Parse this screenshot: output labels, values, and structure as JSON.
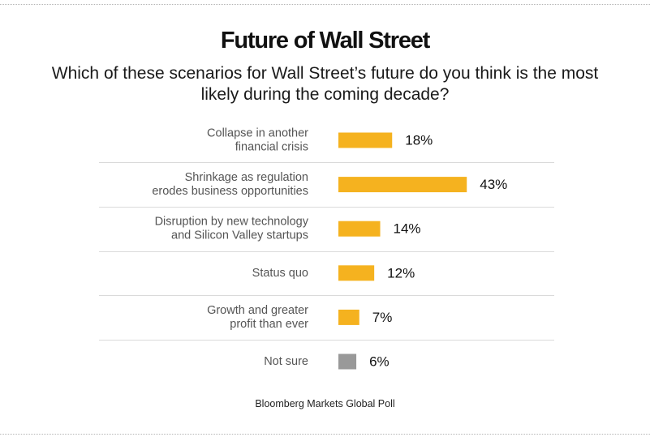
{
  "header": {
    "title": "Future of Wall Street",
    "subtitle": "Which of these scenarios for Wall Street’s future do you think is the most likely during the coming decade?"
  },
  "footer": {
    "source": "Bloomberg Markets Global Poll"
  },
  "colors": {
    "bar": "#f5b21f",
    "bar_muted": "#999999",
    "divider": "#dadada",
    "category_text": "#555555",
    "value_text": "#111111"
  },
  "chart_data": {
    "type": "bar",
    "orientation": "horizontal",
    "categories": [
      [
        "Collapse in another",
        "financial crisis"
      ],
      [
        "Shrinkage as regulation",
        "erodes business opportunities"
      ],
      [
        "Disruption by new technology",
        "and Silicon Valley startups"
      ],
      [
        "Status quo"
      ],
      [
        "Growth and greater",
        "profit than ever"
      ],
      [
        "Not sure"
      ]
    ],
    "values": [
      18,
      43,
      14,
      12,
      7,
      6
    ],
    "value_labels": [
      "18%",
      "43%",
      "14%",
      "12%",
      "7%",
      "6%"
    ],
    "bar_colors": [
      "#f5b21f",
      "#f5b21f",
      "#f5b21f",
      "#f5b21f",
      "#f5b21f",
      "#999999"
    ],
    "unit": "%",
    "xlim": [
      0,
      100
    ],
    "grid": false,
    "legend": "none"
  }
}
